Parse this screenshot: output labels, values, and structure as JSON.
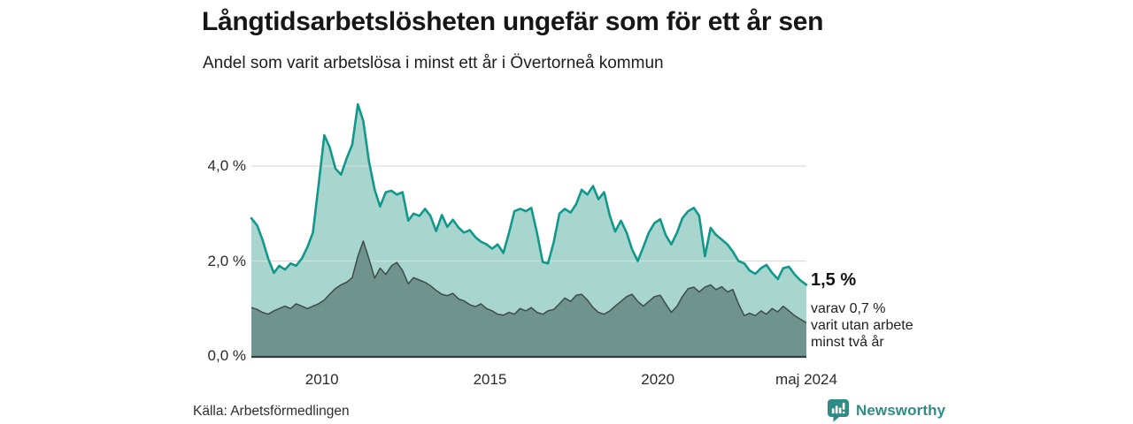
{
  "header": {
    "title": "Långtidsarbetslösheten ungefär som för ett år sen",
    "subtitle": "Andel som varit arbetslösa i minst ett år i Övertorneå kommun"
  },
  "chart_data": {
    "type": "area",
    "title": "Långtidsarbetslösheten ungefär som för ett år sen",
    "subtitle": "Andel som varit arbetslösa i minst ett år i Övertorneå kommun",
    "unit": "%",
    "grid": "horizontal",
    "legend": "none",
    "xlim": [
      2007.9,
      2024.42
    ],
    "ylim": [
      0,
      5.45
    ],
    "yticks": [
      {
        "value": 0,
        "label": "0,0 %"
      },
      {
        "value": 2,
        "label": "2,0 %"
      },
      {
        "value": 4,
        "label": "4,0 %"
      }
    ],
    "xticks": [
      {
        "value": 2010,
        "label": "2010"
      },
      {
        "value": 2015,
        "label": "2015"
      },
      {
        "value": 2020,
        "label": "2020"
      },
      {
        "value": 2024.42,
        "label": "maj 2024"
      }
    ],
    "x": [
      2007.9,
      2008.07,
      2008.23,
      2008.4,
      2008.57,
      2008.73,
      2008.9,
      2009.07,
      2009.23,
      2009.4,
      2009.57,
      2009.73,
      2009.9,
      2010.07,
      2010.23,
      2010.4,
      2010.57,
      2010.73,
      2010.9,
      2011.07,
      2011.23,
      2011.4,
      2011.57,
      2011.73,
      2011.9,
      2012.07,
      2012.23,
      2012.4,
      2012.57,
      2012.73,
      2012.9,
      2013.07,
      2013.23,
      2013.4,
      2013.57,
      2013.73,
      2013.9,
      2014.07,
      2014.23,
      2014.4,
      2014.57,
      2014.73,
      2014.9,
      2015.07,
      2015.23,
      2015.4,
      2015.57,
      2015.73,
      2015.9,
      2016.07,
      2016.23,
      2016.4,
      2016.57,
      2016.73,
      2016.9,
      2017.07,
      2017.23,
      2017.4,
      2017.57,
      2017.73,
      2017.9,
      2018.07,
      2018.23,
      2018.4,
      2018.57,
      2018.73,
      2018.9,
      2019.07,
      2019.23,
      2019.4,
      2019.57,
      2019.73,
      2019.9,
      2020.07,
      2020.23,
      2020.4,
      2020.57,
      2020.73,
      2020.9,
      2021.07,
      2021.23,
      2021.4,
      2021.57,
      2021.73,
      2021.9,
      2022.07,
      2022.23,
      2022.4,
      2022.57,
      2022.73,
      2022.9,
      2023.07,
      2023.23,
      2023.4,
      2023.57,
      2023.73,
      2023.9,
      2024.07,
      2024.23,
      2024.42
    ],
    "series": [
      {
        "name": "Andel som varit arbetslösa i minst ett år",
        "values": [
          2.9,
          2.75,
          2.45,
          2.05,
          1.75,
          1.9,
          1.82,
          1.95,
          1.9,
          2.05,
          2.3,
          2.6,
          3.6,
          4.65,
          4.4,
          3.95,
          3.82,
          4.15,
          4.45,
          5.3,
          4.95,
          4.1,
          3.5,
          3.15,
          3.45,
          3.48,
          3.4,
          3.45,
          2.85,
          3.0,
          2.95,
          3.1,
          2.95,
          2.63,
          2.97,
          2.72,
          2.87,
          2.7,
          2.6,
          2.65,
          2.5,
          2.41,
          2.35,
          2.26,
          2.35,
          2.17,
          2.6,
          3.05,
          3.1,
          3.05,
          3.12,
          2.6,
          1.98,
          1.95,
          2.4,
          3.0,
          3.1,
          3.02,
          3.2,
          3.5,
          3.4,
          3.58,
          3.3,
          3.45,
          2.95,
          2.62,
          2.85,
          2.6,
          2.25,
          2.0,
          2.3,
          2.6,
          2.8,
          2.88,
          2.55,
          2.35,
          2.6,
          2.9,
          3.05,
          3.12,
          2.95,
          2.1,
          2.7,
          2.55,
          2.45,
          2.35,
          2.2,
          2.0,
          1.95,
          1.8,
          1.73,
          1.85,
          1.92,
          1.75,
          1.62,
          1.85,
          1.88,
          1.72,
          1.6,
          1.5
        ]
      },
      {
        "name": "varav varit utan arbete minst två år",
        "values": [
          1.02,
          0.98,
          0.92,
          0.88,
          0.95,
          1.0,
          1.05,
          1.0,
          1.1,
          1.05,
          1.0,
          1.05,
          1.1,
          1.18,
          1.3,
          1.42,
          1.5,
          1.55,
          1.65,
          2.1,
          2.42,
          2.05,
          1.64,
          1.85,
          1.72,
          1.9,
          1.97,
          1.8,
          1.52,
          1.65,
          1.6,
          1.55,
          1.48,
          1.38,
          1.3,
          1.27,
          1.32,
          1.2,
          1.16,
          1.08,
          1.04,
          1.1,
          1.0,
          0.95,
          0.88,
          0.86,
          0.92,
          0.88,
          1.0,
          0.95,
          1.02,
          0.92,
          0.88,
          0.95,
          0.98,
          1.1,
          1.22,
          1.15,
          1.28,
          1.3,
          1.18,
          1.02,
          0.92,
          0.88,
          0.95,
          1.05,
          1.15,
          1.25,
          1.3,
          1.15,
          1.05,
          1.15,
          1.25,
          1.28,
          1.1,
          0.92,
          1.05,
          1.25,
          1.42,
          1.45,
          1.35,
          1.45,
          1.5,
          1.4,
          1.46,
          1.35,
          1.4,
          1.1,
          0.85,
          0.9,
          0.85,
          0.95,
          0.88,
          1.0,
          0.93,
          1.05,
          0.95,
          0.85,
          0.78,
          0.7
        ]
      }
    ],
    "latest": {
      "minst_ett_ar": "1,5 %",
      "minst_tva_ar": "0,7 %",
      "period": "maj 2024"
    }
  },
  "annotation": {
    "latest_value": "1,5 %",
    "lines": [
      "varav 0,7 %",
      "varit utan arbete",
      "minst två år"
    ]
  },
  "footer": {
    "source": "Källa: Arbetsförmedlingen",
    "logo_text": "Newsworthy"
  },
  "colors": {
    "series1_fill": "#a9d5cf",
    "series1_line": "#12988a",
    "series2_fill": "#6f938d",
    "series2_line": "#3d4c49",
    "grid": "#d9dcdc",
    "baseline": "#3a3a3a",
    "brand_teal": "#2e8c85",
    "text_dark": "#161616"
  }
}
